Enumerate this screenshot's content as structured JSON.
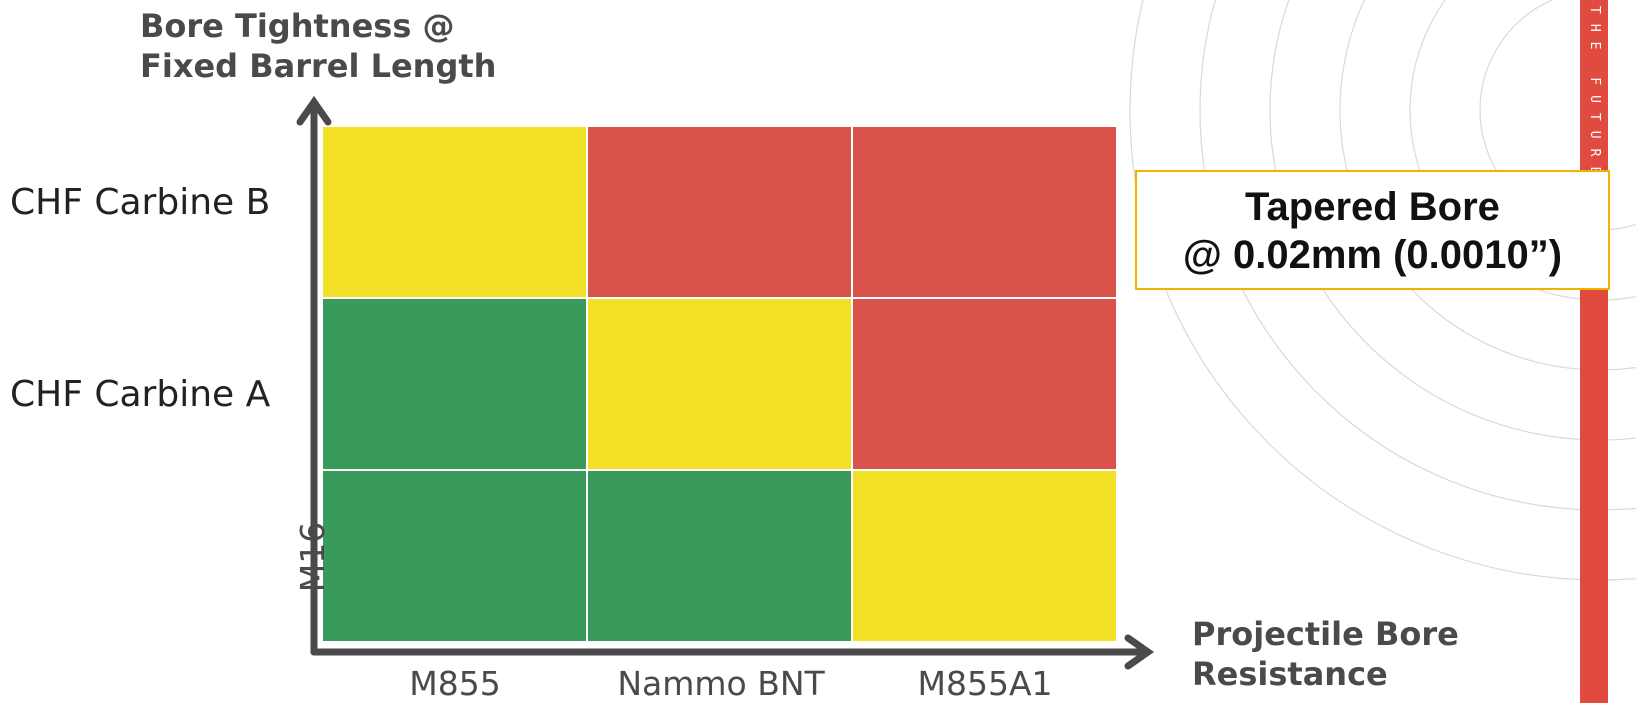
{
  "chart_data": {
    "type": "heatmap",
    "ylabel_line1": "Bore Tightness @",
    "ylabel_line2": "Fixed Barrel Length",
    "xlabel_line1": "Projectile Bore",
    "xlabel_line2": "Resistance",
    "columns": [
      "M855",
      "Nammo BNT",
      "M855A1"
    ],
    "rows": [
      "CHF Carbine B",
      "CHF Carbine A",
      "M16"
    ],
    "cells": [
      [
        "yellow",
        "red",
        "red"
      ],
      [
        "green",
        "yellow",
        "red"
      ],
      [
        "green",
        "green",
        "yellow"
      ]
    ],
    "colors": {
      "green": "#3a9a5c",
      "yellow": "#f3e127",
      "red": "#d9524b",
      "axis": "#4a4a4a",
      "grid": "#ffffff"
    }
  },
  "callout": {
    "line1": "Tapered Bore",
    "line2": "@ 0.02mm (0.0010”)"
  },
  "side_banner": {
    "text": "THE FUTURE",
    "color": "#e04a3f"
  }
}
